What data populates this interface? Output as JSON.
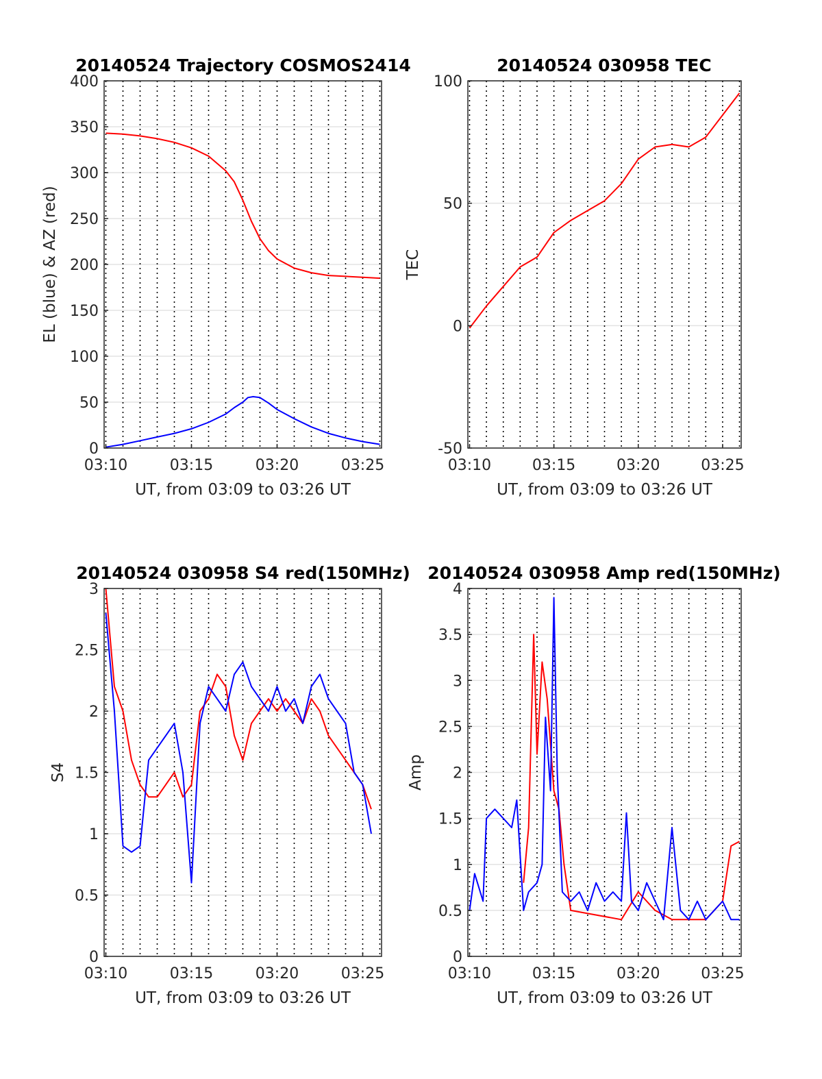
{
  "chart_data": [
    {
      "type": "line",
      "title": "20140524 Trajectory COSMOS2414",
      "xlabel": "UT, from 03:09 to 03:26 UT",
      "ylabel": "EL (blue) & AZ (red)",
      "x_unit": "minutes after 03:00 UT",
      "xlim": [
        9.9,
        26.1
      ],
      "ylim": [
        0,
        400
      ],
      "xticks": [
        10,
        15,
        20,
        25
      ],
      "xtick_labels": [
        "03:10",
        "03:15",
        "03:20",
        "03:25"
      ],
      "yticks": [
        0,
        50,
        100,
        150,
        200,
        250,
        300,
        350,
        400
      ],
      "ytick_labels": [
        "0",
        "50",
        "100",
        "150",
        "200",
        "250",
        "300",
        "350",
        "400"
      ],
      "grid": true,
      "minute_gridlines": true,
      "series": [
        {
          "color": "#ff0000",
          "x": [
            10,
            11,
            12,
            13,
            14,
            15,
            16,
            17,
            17.5,
            18,
            18.5,
            19,
            19.5,
            20,
            21,
            22,
            23,
            24,
            25,
            26
          ],
          "y": [
            343,
            342,
            340,
            337,
            333,
            327,
            318,
            302,
            290,
            270,
            247,
            228,
            215,
            206,
            196,
            191,
            188,
            187,
            186,
            185
          ]
        },
        {
          "color": "#0000ff",
          "x": [
            10,
            11,
            12,
            13,
            14,
            15,
            16,
            17,
            17.5,
            18,
            18.3,
            18.6,
            19,
            19.5,
            20,
            21,
            22,
            23,
            24,
            25,
            26
          ],
          "y": [
            1,
            4,
            8,
            12,
            16,
            21,
            28,
            37,
            44,
            50,
            55,
            56,
            55,
            49,
            42,
            32,
            23,
            16,
            11,
            7,
            4
          ]
        }
      ]
    },
    {
      "type": "line",
      "title": "20140524 030958 TEC",
      "xlabel": "UT, from 03:09 to 03:26 UT",
      "ylabel": "TEC",
      "x_unit": "minutes after 03:00 UT",
      "xlim": [
        9.9,
        26.1
      ],
      "ylim": [
        -50,
        100
      ],
      "xticks": [
        10,
        15,
        20,
        25
      ],
      "xtick_labels": [
        "03:10",
        "03:15",
        "03:20",
        "03:25"
      ],
      "yticks": [
        -50,
        0,
        50,
        100
      ],
      "ytick_labels": [
        "-50",
        "0",
        "50",
        "100"
      ],
      "grid": true,
      "minute_gridlines": true,
      "series": [
        {
          "color": "#ff0000",
          "x": [
            10,
            11,
            12,
            13,
            14,
            15,
            16,
            17,
            18,
            19,
            20,
            21,
            22,
            23,
            24,
            25,
            26
          ],
          "y": [
            -1,
            8,
            16,
            24,
            28,
            38,
            43,
            47,
            51,
            58,
            68,
            73,
            74,
            73,
            77,
            86,
            95
          ]
        }
      ]
    },
    {
      "type": "line",
      "title": "20140524 030958 S4 red(150MHz)",
      "xlabel": "UT, from 03:09 to 03:26 UT",
      "ylabel": "S4",
      "x_unit": "minutes after 03:00 UT",
      "xlim": [
        9.9,
        26.1
      ],
      "ylim": [
        0,
        3
      ],
      "xticks": [
        10,
        15,
        20,
        25
      ],
      "xtick_labels": [
        "03:10",
        "03:15",
        "03:20",
        "03:25"
      ],
      "yticks": [
        0,
        0.5,
        1,
        1.5,
        2,
        2.5,
        3
      ],
      "ytick_labels": [
        "0",
        "0.5",
        "1",
        "1.5",
        "2",
        "2.5",
        "3"
      ],
      "grid": true,
      "minute_gridlines": true,
      "series": [
        {
          "color": "#ff0000",
          "x": [
            10,
            10.5,
            11,
            11.5,
            12,
            12.5,
            13,
            13.5,
            14,
            14.5,
            15,
            15.5,
            16,
            16.5,
            17,
            17.5,
            18,
            18.5,
            19,
            19.5,
            20,
            20.5,
            21,
            21.5,
            22,
            22.5,
            23,
            23.5,
            24,
            24.5,
            25,
            25.5
          ],
          "y": [
            3,
            2.2,
            2,
            1.6,
            1.4,
            1.3,
            1.3,
            1.4,
            1.5,
            1.3,
            1.4,
            2,
            2.1,
            2.3,
            2.2,
            1.8,
            1.6,
            1.9,
            2,
            2.1,
            2.0,
            2.1,
            2.0,
            1.9,
            2.1,
            2.0,
            1.8,
            1.7,
            1.6,
            1.5,
            1.4,
            1.2
          ]
        },
        {
          "color": "#0000ff",
          "x": [
            10,
            10.5,
            11,
            11.5,
            12,
            12.5,
            13,
            13.5,
            14,
            14.5,
            15,
            15.5,
            16,
            16.5,
            17,
            17.5,
            18,
            18.5,
            19,
            19.5,
            20,
            20.5,
            21,
            21.5,
            22,
            22.5,
            23,
            23.5,
            24,
            24.5,
            25,
            25.5
          ],
          "y": [
            2.8,
            2.0,
            0.9,
            0.85,
            0.9,
            1.6,
            1.7,
            1.8,
            1.9,
            1.5,
            0.6,
            1.9,
            2.2,
            2.1,
            2.0,
            2.3,
            2.4,
            2.2,
            2.1,
            2.0,
            2.2,
            2.0,
            2.1,
            1.9,
            2.2,
            2.3,
            2.1,
            2.0,
            1.9,
            1.5,
            1.4,
            1.0
          ]
        }
      ]
    },
    {
      "type": "line",
      "title": "20140524 030958 Amp red(150MHz)",
      "xlabel": "UT, from 03:09 to 03:26 UT",
      "ylabel": "Amp",
      "x_unit": "minutes after 03:00 UT",
      "xlim": [
        9.9,
        26.1
      ],
      "ylim": [
        0,
        4
      ],
      "xticks": [
        10,
        15,
        20,
        25
      ],
      "xtick_labels": [
        "03:10",
        "03:15",
        "03:20",
        "03:25"
      ],
      "yticks": [
        0,
        0.5,
        1,
        1.5,
        2,
        2.5,
        3,
        3.5,
        4
      ],
      "ytick_labels": [
        "0",
        "0.5",
        "1",
        "1.5",
        "2",
        "2.5",
        "3",
        "3.5",
        "4"
      ],
      "grid": true,
      "minute_gridlines": true,
      "series": [
        {
          "color": "#ff0000",
          "x": [
            13.2,
            13.5,
            13.8,
            14.0,
            14.3,
            14.6,
            15.0,
            15.3,
            15.6,
            16,
            19,
            20,
            21,
            22,
            23,
            24,
            25,
            25.5,
            26
          ],
          "y": [
            0.8,
            1.4,
            3.5,
            2.2,
            3.2,
            2.8,
            1.8,
            1.6,
            1.0,
            0.5,
            0.4,
            0.7,
            0.5,
            0.4,
            0.4,
            0.4,
            0.6,
            1.2,
            1.25
          ]
        },
        {
          "color": "#0000ff",
          "x": [
            10,
            10.3,
            10.8,
            11,
            11.5,
            12,
            12.5,
            12.8,
            13.2,
            13.5,
            14,
            14.3,
            14.5,
            14.8,
            15,
            15.2,
            15.5,
            16,
            16.5,
            17,
            17.5,
            18,
            18.5,
            19,
            19.3,
            19.6,
            20,
            20.5,
            21,
            21.5,
            22,
            22.5,
            23,
            23.5,
            24,
            24.5,
            25,
            25.5,
            26
          ],
          "y": [
            0.5,
            0.9,
            0.6,
            1.5,
            1.6,
            1.5,
            1.4,
            1.7,
            0.5,
            0.7,
            0.8,
            1.0,
            2.6,
            1.8,
            3.9,
            2.0,
            0.7,
            0.6,
            0.7,
            0.5,
            0.8,
            0.6,
            0.7,
            0.6,
            1.56,
            0.6,
            0.5,
            0.8,
            0.6,
            0.4,
            1.4,
            0.5,
            0.4,
            0.6,
            0.4,
            0.5,
            0.6,
            0.4,
            0.4
          ]
        }
      ]
    }
  ]
}
